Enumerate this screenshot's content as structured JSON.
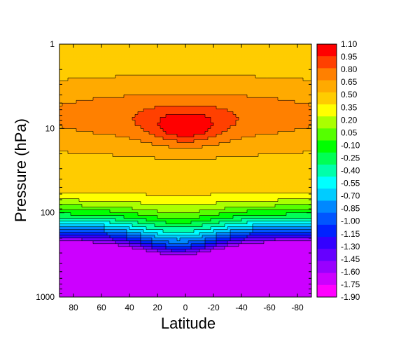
{
  "chart_data": {
    "type": "heatmap",
    "title": "",
    "xlabel": "Latitude",
    "ylabel": "Pressure (hPa)",
    "x_axis": {
      "range": [
        90,
        -90
      ],
      "tick_labels": [
        "80",
        "60",
        "40",
        "20",
        "0",
        "-20",
        "-40",
        "-60",
        "-80"
      ],
      "tick_values": [
        80,
        60,
        40,
        20,
        0,
        -20,
        -40,
        -60,
        -80
      ]
    },
    "y_axis": {
      "scale": "log",
      "range": [
        1000,
        1
      ],
      "tick_labels": [
        "1",
        "10",
        "100",
        "1000"
      ],
      "tick_values": [
        1,
        10,
        100,
        1000
      ]
    },
    "colorbar": {
      "levels": [
        "1.10",
        "0.95",
        "0.80",
        "0.65",
        "0.50",
        "0.35",
        "0.20",
        "0.05",
        "-0.10",
        "-0.25",
        "-0.40",
        "-0.55",
        "-0.70",
        "-0.85",
        "-1.00",
        "-1.15",
        "-1.30",
        "-1.45",
        "-1.60",
        "-1.75",
        "-1.90"
      ],
      "colors": [
        "#ff0000",
        "#ff4000",
        "#ff8000",
        "#ffaa00",
        "#ffcc00",
        "#ffff00",
        "#aaff00",
        "#55ff00",
        "#00ff00",
        "#00ff55",
        "#00ffaa",
        "#00ffff",
        "#00ccff",
        "#0088ff",
        "#0055ff",
        "#0022ff",
        "#3300ff",
        "#6600ff",
        "#9900ff",
        "#cc00ff",
        "#ff00ff"
      ]
    },
    "grid": false,
    "legend": "right colorbar"
  }
}
